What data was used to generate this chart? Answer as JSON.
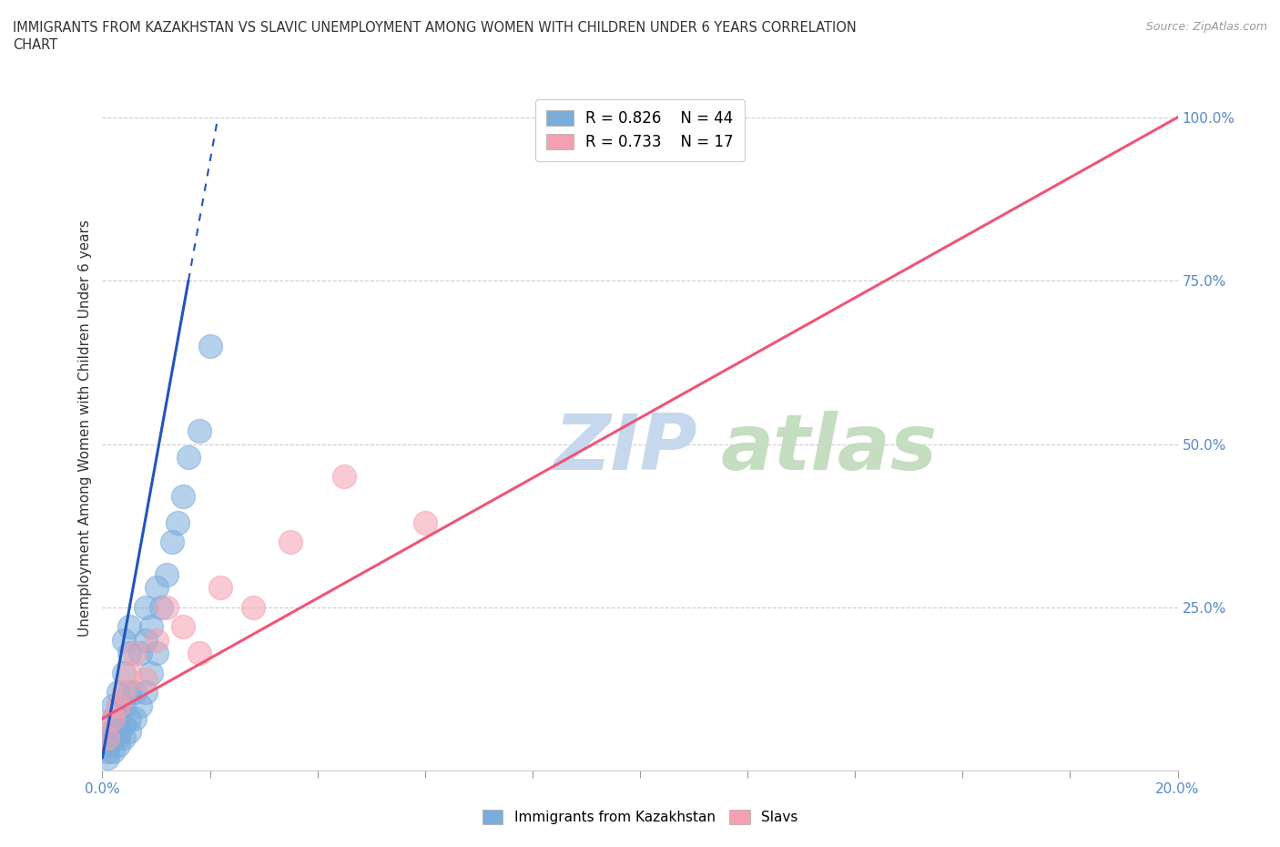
{
  "title_line1": "IMMIGRANTS FROM KAZAKHSTAN VS SLAVIC UNEMPLOYMENT AMONG WOMEN WITH CHILDREN UNDER 6 YEARS CORRELATION",
  "title_line2": "CHART",
  "source": "Source: ZipAtlas.com",
  "ylabel": "Unemployment Among Women with Children Under 6 years",
  "xmin": 0.0,
  "xmax": 0.2,
  "ymin": 0.0,
  "ymax": 1.05,
  "yticks": [
    0.0,
    0.25,
    0.5,
    0.75,
    1.0
  ],
  "ytick_labels": [
    "",
    "25.0%",
    "50.0%",
    "75.0%",
    "100.0%"
  ],
  "legend_r1": "R = 0.826",
  "legend_n1": "N = 44",
  "legend_r2": "R = 0.733",
  "legend_n2": "N = 17",
  "color_kaz": "#7aacdc",
  "color_slavic": "#f5a0b0",
  "color_trendline_kaz": "#2255bb",
  "color_trendline_slavic": "#ee5577",
  "watermark_zip_color": "#c5d8ee",
  "watermark_atlas_color": "#c5ddc0",
  "background_color": "#ffffff",
  "kaz_x": [
    0.001,
    0.001,
    0.001,
    0.001,
    0.002,
    0.002,
    0.002,
    0.002,
    0.002,
    0.003,
    0.003,
    0.003,
    0.003,
    0.003,
    0.003,
    0.004,
    0.004,
    0.004,
    0.004,
    0.004,
    0.005,
    0.005,
    0.005,
    0.005,
    0.005,
    0.006,
    0.006,
    0.007,
    0.007,
    0.008,
    0.008,
    0.008,
    0.009,
    0.009,
    0.01,
    0.01,
    0.011,
    0.012,
    0.013,
    0.014,
    0.015,
    0.016,
    0.018,
    0.02
  ],
  "kaz_y": [
    0.02,
    0.03,
    0.04,
    0.05,
    0.03,
    0.05,
    0.06,
    0.08,
    0.1,
    0.04,
    0.05,
    0.06,
    0.08,
    0.1,
    0.12,
    0.05,
    0.07,
    0.1,
    0.15,
    0.2,
    0.06,
    0.08,
    0.12,
    0.18,
    0.22,
    0.08,
    0.12,
    0.1,
    0.18,
    0.12,
    0.2,
    0.25,
    0.15,
    0.22,
    0.18,
    0.28,
    0.25,
    0.3,
    0.35,
    0.38,
    0.42,
    0.48,
    0.52,
    0.65
  ],
  "slavic_x": [
    0.001,
    0.002,
    0.003,
    0.004,
    0.005,
    0.006,
    0.008,
    0.01,
    0.012,
    0.015,
    0.018,
    0.022,
    0.028,
    0.035,
    0.045,
    0.06,
    0.09
  ],
  "slavic_y": [
    0.05,
    0.08,
    0.1,
    0.12,
    0.15,
    0.18,
    0.14,
    0.2,
    0.25,
    0.22,
    0.18,
    0.28,
    0.25,
    0.35,
    0.45,
    0.38,
    0.98
  ],
  "kaz_trendline_x0": 0.0,
  "kaz_trendline_y0": 0.02,
  "kaz_trendline_x1": 0.016,
  "kaz_trendline_y1": 0.75,
  "slavic_trendline_x0": 0.0,
  "slavic_trendline_y0": 0.08,
  "slavic_trendline_x1": 0.2,
  "slavic_trendline_y1": 1.0
}
